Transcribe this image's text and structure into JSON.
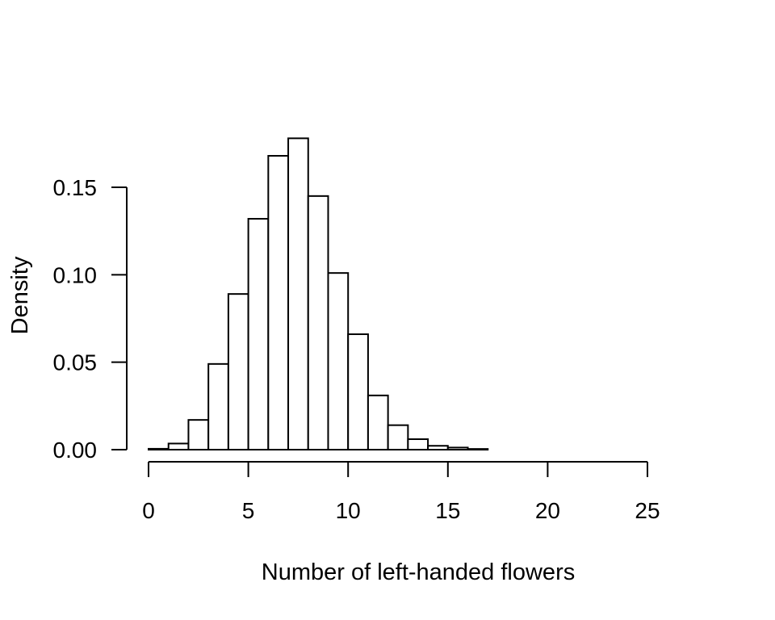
{
  "chart_data": {
    "type": "bar",
    "title": "",
    "xlabel": "Number of left-handed flowers",
    "ylabel": "Density",
    "bin_edges": [
      0,
      1,
      2,
      3,
      4,
      5,
      6,
      7,
      8,
      9,
      10,
      11,
      12,
      13,
      14,
      15,
      16,
      17
    ],
    "values": [
      0.0005,
      0.0035,
      0.017,
      0.049,
      0.089,
      0.132,
      0.168,
      0.178,
      0.145,
      0.101,
      0.066,
      0.031,
      0.014,
      0.006,
      0.0022,
      0.0012,
      0.0004
    ],
    "xlim": [
      0,
      25
    ],
    "ylim": [
      0,
      0.15
    ],
    "x_ticks": [
      "0",
      "5",
      "10",
      "15",
      "20",
      "25"
    ],
    "y_ticks": [
      "0.00",
      "0.05",
      "0.10",
      "0.15"
    ],
    "grid": false,
    "legend": "none"
  }
}
